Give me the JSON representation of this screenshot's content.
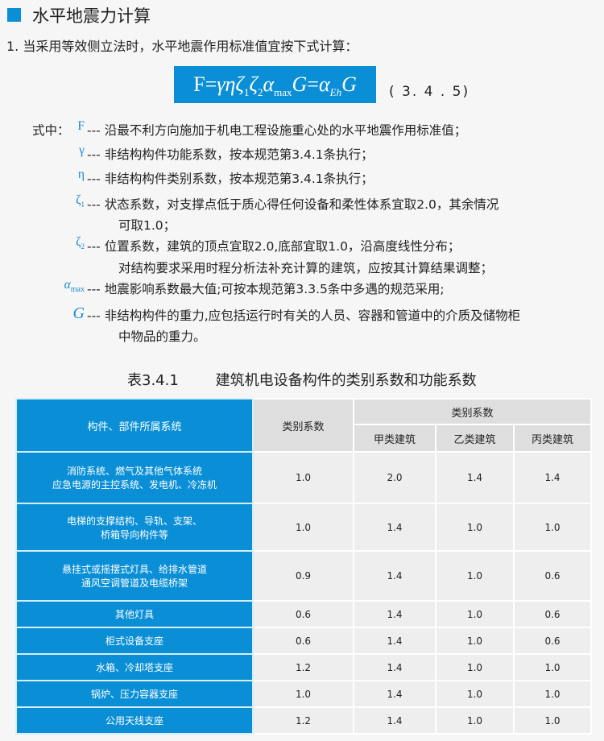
{
  "section_title": "水平地震力计算",
  "intro": "1. 当采用等效侧立法时，水平地震作用标准值宜按下式计算：",
  "formula": {
    "text": "F=γηζ₁ζ₂α_max G=α_Eh G",
    "number": "( 3. 4 . 5)"
  },
  "where_label": "式中：",
  "definitions": [
    {
      "symbol": "F",
      "lines": [
        "--- 沿最不利方向施加于机电工程设施重心处的水平地震作用标准值；"
      ]
    },
    {
      "symbol": "γ",
      "lines": [
        "--- 非结构构件功能系数，按本规范第3.4.1条执行；"
      ]
    },
    {
      "symbol": "η",
      "lines": [
        "--- 非结构构件类别系数，按本规范第3.4.1条执行；"
      ]
    },
    {
      "symbol": "ζ₁",
      "lines": [
        "--- 状态系数，对支撑点低于质心得任何设备和柔性体系宜取2.0，其余情况",
        "可取1.0；"
      ]
    },
    {
      "symbol": "ζ₂",
      "lines": [
        "--- 位置系数，建筑的顶点宜取2.0,底部宜取1.0，沿高度线性分布；",
        "对结构要求采用时程分析法补充计算的建筑，应按其计算结果调整；"
      ]
    },
    {
      "symbol": "αmax",
      "lines": [
        "--- 地震影响系数最大值;可按本规范第3.3.5条中多遇的规范采用;"
      ]
    },
    {
      "symbol": "G",
      "lines": [
        "--- 非结构构件的重力,应包括运行时有关的人员、容器和管道中的介质及储物柜",
        "中物品的重力。"
      ]
    }
  ],
  "table": {
    "caption": "表3.4.1        建筑机电设备构件的类别系数和功能系数",
    "headers": {
      "system": "构件、部件所属系统",
      "category": "类别系数",
      "group": "类别系数",
      "a": "甲类建筑",
      "b": "乙类建筑",
      "c": "丙类建筑"
    },
    "rows": [
      {
        "name": [
          "消防系统、燃气及其他气体系统",
          "应急电源的主控系统、发电机、冷冻机"
        ],
        "values": [
          "1.0",
          "2.0",
          "1.4",
          "1.4"
        ]
      },
      {
        "name": [
          "电梯的支撑结构、导轨、支架、",
          "桥箱导向构件等"
        ],
        "values": [
          "1.0",
          "1.4",
          "1.0",
          "1.0"
        ]
      },
      {
        "name": [
          "悬挂式或摇摆式灯具、给排水管道",
          "通风空调管道及电缆桥架"
        ],
        "values": [
          "0.9",
          "1.4",
          "1.0",
          "0.6"
        ]
      },
      {
        "name": [
          "其他灯具"
        ],
        "values": [
          "0.6",
          "1.4",
          "1.0",
          "0.6"
        ]
      },
      {
        "name": [
          "柜式设备支座"
        ],
        "values": [
          "0.6",
          "1.4",
          "1.0",
          "0.6"
        ]
      },
      {
        "name": [
          "水箱、冷却塔支座"
        ],
        "values": [
          "1.2",
          "1.4",
          "1.0",
          "1.0"
        ]
      },
      {
        "name": [
          "锅炉、压力容器支座"
        ],
        "values": [
          "1.0",
          "1.4",
          "1.0",
          "1.0"
        ]
      },
      {
        "name": [
          "公用天线支座"
        ],
        "values": [
          "1.2",
          "1.4",
          "1.0",
          "1.0"
        ]
      }
    ]
  },
  "colors": {
    "accent": "#0a8fd6",
    "header_grey": "#dedede",
    "cell_grey": "#eeeeee"
  }
}
